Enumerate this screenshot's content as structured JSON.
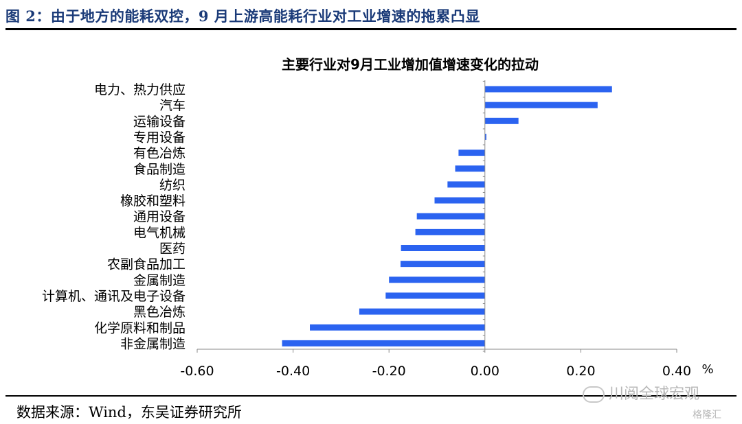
{
  "figure": {
    "title": "图 2：由于地方的能耗双控，9 月上游高能耗行业对工业增速的拖累凸显",
    "source": "数据来源：Wind，东吴证券研究所"
  },
  "watermark": {
    "text": "川阅全球宏观",
    "sub": "格隆汇",
    "icon": "wechat-icon"
  },
  "chart_data": {
    "type": "bar",
    "orientation": "horizontal",
    "title": "主要行业对9月工业增加值增速变化的拉动",
    "unit": "%",
    "xlim": [
      -0.6,
      0.4
    ],
    "xticks": [
      -0.6,
      -0.4,
      -0.2,
      0.0,
      0.2,
      0.4
    ],
    "xtick_labels": [
      "-0.60",
      "-0.40",
      "-0.20",
      "0.00",
      "0.20",
      "0.40"
    ],
    "bar_color": "#2b63f0",
    "categories": [
      "电力、热力供应",
      "汽车",
      "运输设备",
      "专用设备",
      "有色冶炼",
      "食品制造",
      "纺织",
      "橡胶和塑料",
      "通用设备",
      "电气机械",
      "医药",
      "农副食品加工",
      "金属制造",
      "计算机、通讯及电子设备",
      "黑色冶炼",
      "化学原料和制品",
      "非金属制造"
    ],
    "values": [
      0.265,
      0.235,
      0.07,
      0.003,
      -0.055,
      -0.062,
      -0.078,
      -0.105,
      -0.142,
      -0.145,
      -0.175,
      -0.176,
      -0.2,
      -0.207,
      -0.262,
      -0.365,
      -0.423
    ]
  }
}
